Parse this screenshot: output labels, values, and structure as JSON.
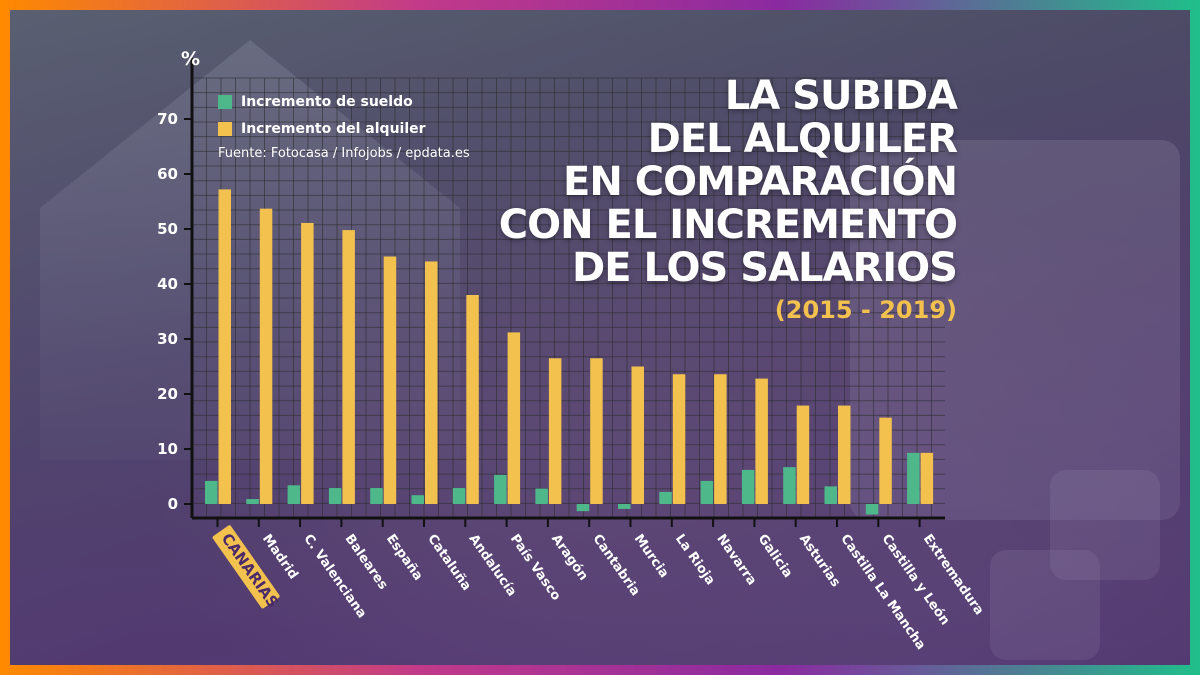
{
  "colors": {
    "sueldo": "#4fb88a",
    "alquiler": "#f2c14e",
    "highlight_bg": "#f2c14e",
    "highlight_text": "#4a2a6a",
    "axis": "#111111",
    "grid": "#2a2a2a",
    "tick_text": "#ffffff"
  },
  "title_lines": [
    "LA SUBIDA",
    "DEL ALQUILER",
    "EN COMPARACIÓN",
    "CON EL INCREMENTO",
    "DE LOS SALARIOS"
  ],
  "subtitle": "(2015 - 2019)",
  "source": "Fuente: Fotocasa / Infojobs / epdata.es",
  "chart_data": {
    "type": "bar",
    "y_unit_label": "%",
    "ylim": [
      -3,
      75
    ],
    "yticks": [
      0,
      10,
      20,
      30,
      40,
      50,
      60,
      70
    ],
    "grid": true,
    "legend_position": "top-left",
    "highlight_category": "CANARIAS",
    "categories": [
      "CANARIAS",
      "Madrid",
      "C. Valenciana",
      "Baleares",
      "España",
      "Cataluña",
      "Andalucía",
      "País Vasco",
      "Aragón",
      "Cantabria",
      "Murcia",
      "La Rioja",
      "Navarra",
      "Galicia",
      "Asturias",
      "Castilla La Mancha",
      "Castilla y León",
      "Extremadura"
    ],
    "series": [
      {
        "name": "Incremento de sueldo",
        "color": "#4fb88a",
        "values": [
          4.2,
          0.9,
          3.4,
          2.9,
          2.9,
          1.6,
          2.9,
          5.3,
          2.8,
          -1.3,
          -0.9,
          2.2,
          4.2,
          6.2,
          6.7,
          3.2,
          -1.9,
          9.3
        ]
      },
      {
        "name": "Incremento del alquiler",
        "color": "#f2c14e",
        "values": [
          57.2,
          53.7,
          51.1,
          49.8,
          45.0,
          44.1,
          38.0,
          31.2,
          26.5,
          26.5,
          25.0,
          23.6,
          23.6,
          22.8,
          17.9,
          17.9,
          15.7,
          9.3
        ]
      }
    ]
  }
}
